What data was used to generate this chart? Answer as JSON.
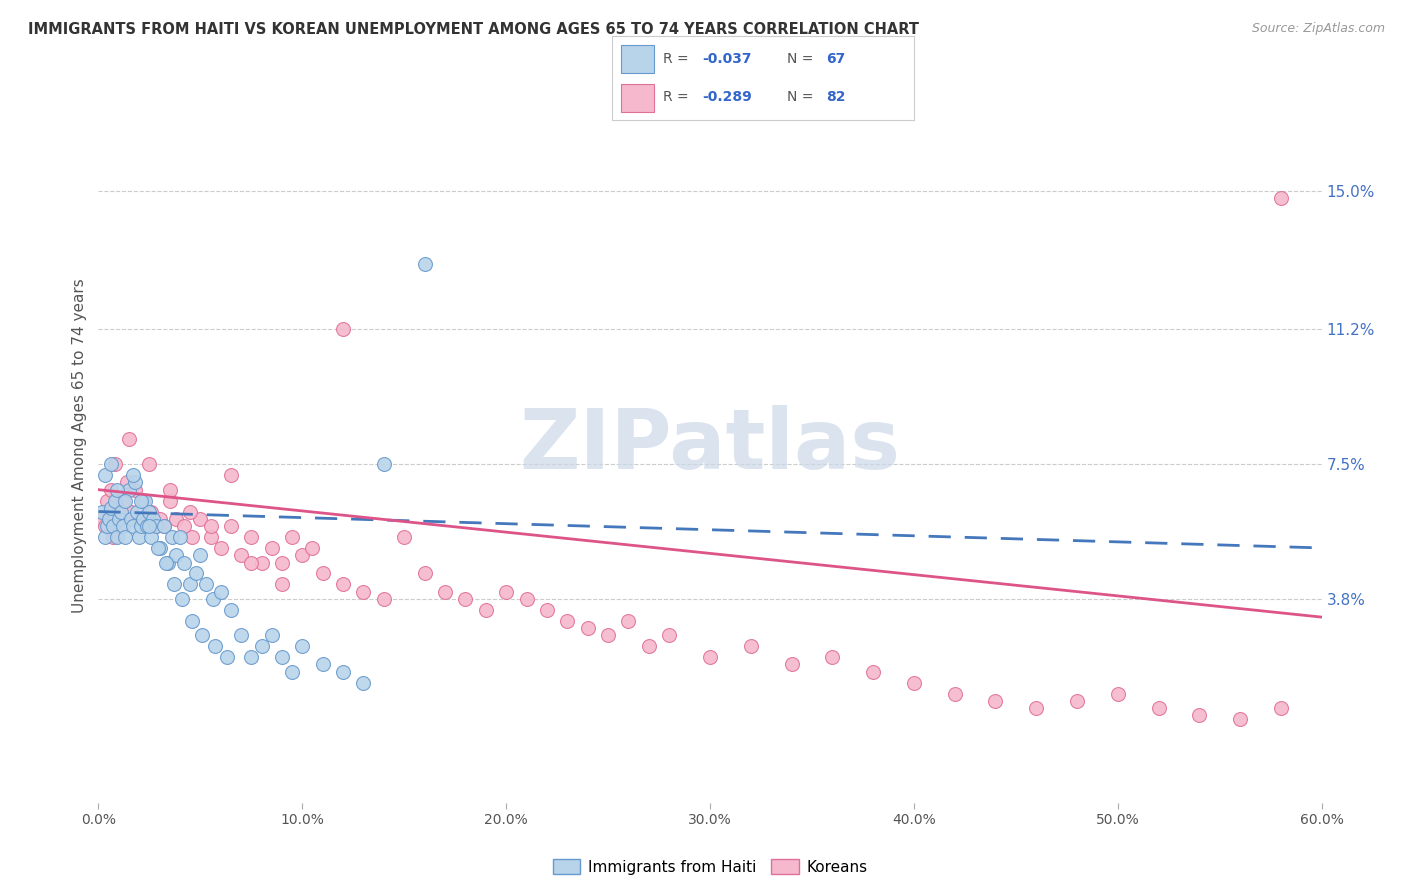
{
  "title": "IMMIGRANTS FROM HAITI VS KOREAN UNEMPLOYMENT AMONG AGES 65 TO 74 YEARS CORRELATION CHART",
  "source": "Source: ZipAtlas.com",
  "ylabel": "Unemployment Among Ages 65 to 74 years",
  "ytick_labels": [
    "15.0%",
    "11.2%",
    "7.5%",
    "3.8%"
  ],
  "ytick_values": [
    0.15,
    0.112,
    0.075,
    0.038
  ],
  "xmin": 0.0,
  "xmax": 0.6,
  "ymin": -0.018,
  "ymax": 0.178,
  "haiti_color": "#b8d4ea",
  "haiti_edge": "#6699cc",
  "korean_color": "#f5b8cc",
  "korean_edge": "#e0709a",
  "haiti_line_color": "#4477bb",
  "korean_line_color": "#dd5588",
  "watermark": "ZIPatlas",
  "watermark_color": "#ccd8e8",
  "haiti_scatter_x": [
    0.002,
    0.003,
    0.004,
    0.005,
    0.006,
    0.007,
    0.008,
    0.009,
    0.01,
    0.011,
    0.012,
    0.013,
    0.015,
    0.016,
    0.017,
    0.018,
    0.019,
    0.02,
    0.021,
    0.022,
    0.023,
    0.024,
    0.025,
    0.026,
    0.027,
    0.028,
    0.03,
    0.032,
    0.034,
    0.036,
    0.038,
    0.04,
    0.042,
    0.045,
    0.048,
    0.05,
    0.053,
    0.056,
    0.06,
    0.065,
    0.07,
    0.075,
    0.08,
    0.085,
    0.09,
    0.095,
    0.1,
    0.11,
    0.12,
    0.13,
    0.003,
    0.006,
    0.009,
    0.013,
    0.017,
    0.021,
    0.025,
    0.029,
    0.033,
    0.037,
    0.041,
    0.046,
    0.051,
    0.057,
    0.063,
    0.14,
    0.16
  ],
  "haiti_scatter_y": [
    0.062,
    0.055,
    0.058,
    0.06,
    0.063,
    0.058,
    0.065,
    0.055,
    0.06,
    0.062,
    0.058,
    0.055,
    0.068,
    0.06,
    0.058,
    0.07,
    0.062,
    0.055,
    0.058,
    0.06,
    0.065,
    0.058,
    0.062,
    0.055,
    0.06,
    0.058,
    0.052,
    0.058,
    0.048,
    0.055,
    0.05,
    0.055,
    0.048,
    0.042,
    0.045,
    0.05,
    0.042,
    0.038,
    0.04,
    0.035,
    0.028,
    0.022,
    0.025,
    0.028,
    0.022,
    0.018,
    0.025,
    0.02,
    0.018,
    0.015,
    0.072,
    0.075,
    0.068,
    0.065,
    0.072,
    0.065,
    0.058,
    0.052,
    0.048,
    0.042,
    0.038,
    0.032,
    0.028,
    0.025,
    0.022,
    0.075,
    0.13
  ],
  "korean_scatter_x": [
    0.002,
    0.003,
    0.004,
    0.005,
    0.006,
    0.007,
    0.008,
    0.009,
    0.01,
    0.011,
    0.012,
    0.014,
    0.016,
    0.018,
    0.02,
    0.022,
    0.024,
    0.026,
    0.028,
    0.03,
    0.032,
    0.035,
    0.038,
    0.042,
    0.046,
    0.05,
    0.055,
    0.06,
    0.065,
    0.07,
    0.075,
    0.08,
    0.085,
    0.09,
    0.095,
    0.1,
    0.11,
    0.12,
    0.13,
    0.14,
    0.15,
    0.16,
    0.17,
    0.18,
    0.19,
    0.2,
    0.21,
    0.22,
    0.23,
    0.24,
    0.25,
    0.26,
    0.27,
    0.28,
    0.3,
    0.32,
    0.34,
    0.36,
    0.38,
    0.4,
    0.42,
    0.44,
    0.46,
    0.48,
    0.5,
    0.52,
    0.54,
    0.56,
    0.58,
    0.008,
    0.015,
    0.025,
    0.035,
    0.045,
    0.055,
    0.065,
    0.075,
    0.09,
    0.105,
    0.12,
    0.58
  ],
  "korean_scatter_y": [
    0.06,
    0.058,
    0.065,
    0.062,
    0.068,
    0.055,
    0.06,
    0.065,
    0.062,
    0.058,
    0.065,
    0.07,
    0.062,
    0.068,
    0.06,
    0.065,
    0.058,
    0.062,
    0.058,
    0.06,
    0.058,
    0.065,
    0.06,
    0.058,
    0.055,
    0.06,
    0.055,
    0.052,
    0.058,
    0.05,
    0.055,
    0.048,
    0.052,
    0.048,
    0.055,
    0.05,
    0.045,
    0.042,
    0.04,
    0.038,
    0.055,
    0.045,
    0.04,
    0.038,
    0.035,
    0.04,
    0.038,
    0.035,
    0.032,
    0.03,
    0.028,
    0.032,
    0.025,
    0.028,
    0.022,
    0.025,
    0.02,
    0.022,
    0.018,
    0.015,
    0.012,
    0.01,
    0.008,
    0.01,
    0.012,
    0.008,
    0.006,
    0.005,
    0.008,
    0.075,
    0.082,
    0.075,
    0.068,
    0.062,
    0.058,
    0.072,
    0.048,
    0.042,
    0.052,
    0.112,
    0.148
  ]
}
